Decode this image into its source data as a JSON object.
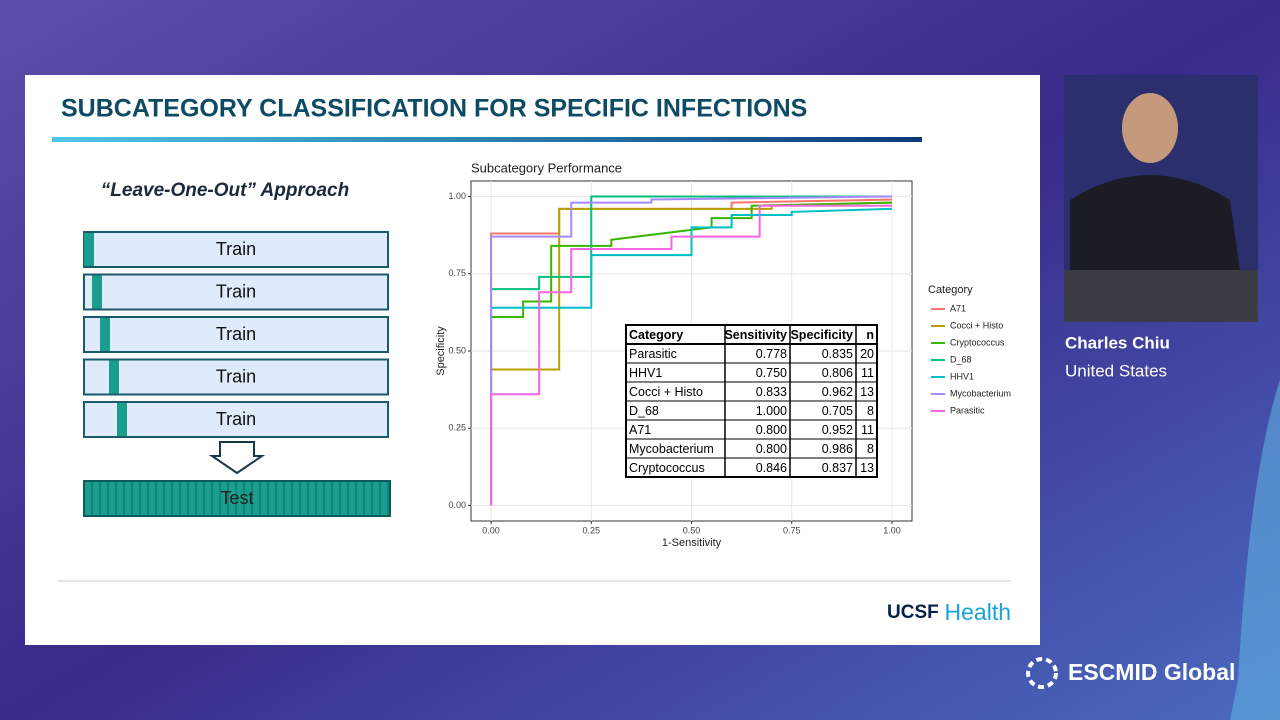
{
  "slide": {
    "title": "SUBCATEGORY CLASSIFICATION FOR SPECIFIC INFECTIONS",
    "approach": "“Leave-One-Out” Approach",
    "train_labels": [
      "Train",
      "Train",
      "Train",
      "Train",
      "Train"
    ],
    "test_label": "Test"
  },
  "chart_data": {
    "type": "line",
    "title": "Subcategory Performance",
    "x_label": "1-Sensitivity",
    "y_label": "Specificity",
    "legend_title": "Category",
    "xlim": [
      -0.05,
      1.05
    ],
    "ylim": [
      -0.05,
      1.05
    ],
    "xticks": [
      {
        "value": 0,
        "label": "0.00"
      },
      {
        "value": 0.25,
        "label": "0.25"
      },
      {
        "value": 0.5,
        "label": "0.50"
      },
      {
        "value": 0.75,
        "label": "0.75"
      },
      {
        "value": 1,
        "label": "1.00"
      }
    ],
    "yticks": [
      {
        "value": 0,
        "label": "0.00"
      },
      {
        "value": 0.25,
        "label": "0.25"
      },
      {
        "value": 0.5,
        "label": "0.50"
      },
      {
        "value": 0.75,
        "label": "0.75"
      },
      {
        "value": 1,
        "label": "1.00"
      }
    ],
    "grid": true,
    "series": [
      {
        "name": "A71",
        "color": "#f8766d",
        "x": [
          0,
          0,
          0.17,
          0.17,
          0.6,
          0.6,
          1
        ],
        "values": [
          0,
          0.88,
          0.88,
          0.96,
          0.96,
          0.98,
          0.99
        ]
      },
      {
        "name": "Cocci + Histo",
        "color": "#b79f00",
        "x": [
          0,
          0,
          0.17,
          0.17,
          0.7,
          0.7,
          1
        ],
        "values": [
          0,
          0.44,
          0.44,
          0.96,
          0.96,
          0.97,
          0.98
        ]
      },
      {
        "name": "Cryptococcus",
        "color": "#39b600",
        "x": [
          0,
          0,
          0.08,
          0.08,
          0.15,
          0.15,
          0.3,
          0.3,
          0.55,
          0.55,
          0.65,
          0.65,
          1
        ],
        "values": [
          0,
          0.61,
          0.61,
          0.66,
          0.66,
          0.84,
          0.84,
          0.86,
          0.9,
          0.93,
          0.93,
          0.97,
          0.98
        ]
      },
      {
        "name": "D_68",
        "color": "#00bf7d",
        "x": [
          0,
          0,
          0.12,
          0.12,
          0.25,
          0.25,
          1
        ],
        "values": [
          0,
          0.7,
          0.7,
          0.74,
          0.74,
          1,
          1
        ]
      },
      {
        "name": "HHV1",
        "color": "#00bfc4",
        "x": [
          0,
          0,
          0.25,
          0.25,
          0.5,
          0.5,
          0.6,
          0.6,
          0.75,
          0.75,
          1
        ],
        "values": [
          0,
          0.64,
          0.64,
          0.81,
          0.81,
          0.9,
          0.9,
          0.94,
          0.94,
          0.95,
          0.96
        ]
      },
      {
        "name": "Mycobacterium",
        "color": "#a58aff",
        "x": [
          0,
          0,
          0.2,
          0.2,
          0.4,
          0.4,
          1
        ],
        "values": [
          0,
          0.87,
          0.87,
          0.98,
          0.98,
          0.99,
          1
        ]
      },
      {
        "name": "Parasitic",
        "color": "#f564e3",
        "x": [
          0,
          0,
          0.12,
          0.12,
          0.2,
          0.2,
          0.45,
          0.45,
          0.67,
          0.67,
          1
        ],
        "values": [
          0,
          0.36,
          0.36,
          0.69,
          0.69,
          0.83,
          0.83,
          0.87,
          0.87,
          0.97,
          0.97
        ]
      }
    ]
  },
  "table": {
    "header": [
      "Category",
      "Sensitivity",
      "Specificity",
      "n"
    ],
    "rows": [
      [
        "Parasitic",
        "0.778",
        "0.835",
        "20"
      ],
      [
        "HHV1",
        "0.750",
        "0.806",
        "11"
      ],
      [
        "Cocci + Histo",
        "0.833",
        "0.962",
        "13"
      ],
      [
        "D_68",
        "1.000",
        "0.705",
        "8"
      ],
      [
        "A71",
        "0.800",
        "0.952",
        "11"
      ],
      [
        "Mycobacterium",
        "0.800",
        "0.986",
        "8"
      ],
      [
        "Cryptococcus",
        "0.846",
        "0.837",
        "13"
      ]
    ]
  },
  "speaker": {
    "name": "Charles Chiu",
    "country": "United States"
  },
  "branding": {
    "ucsf": "UCSF",
    "health": "Health",
    "event": "ESCMID Global"
  }
}
